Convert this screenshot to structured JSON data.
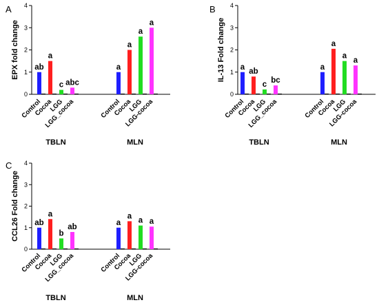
{
  "chart_data": [
    {
      "panel": "A",
      "type": "bar",
      "ylabel": "EPX fold change",
      "ylim": [
        0,
        4
      ],
      "yticks": [
        "0",
        "1",
        "2",
        "3",
        "4"
      ],
      "groups": [
        {
          "name": "TBLN",
          "bars": [
            {
              "label": "Control",
              "value": 1.0,
              "color": "#1f1fff",
              "sig": "ab"
            },
            {
              "label": "Cocoa",
              "value": 1.5,
              "color": "#ff1f1f",
              "sig": "a"
            },
            {
              "label": "LGG",
              "value": 0.2,
              "color": "#22dd22",
              "sig": "c"
            },
            {
              "label": "LGG_cocoa",
              "value": 0.3,
              "color": "#ff33ff",
              "sig": "abc"
            }
          ]
        },
        {
          "name": "MLN",
          "bars": [
            {
              "label": "Control",
              "value": 1.0,
              "color": "#1f1fff",
              "sig": "a"
            },
            {
              "label": "Cocoa",
              "value": 2.0,
              "color": "#ff1f1f",
              "sig": "a"
            },
            {
              "label": "LGG",
              "value": 2.6,
              "color": "#22dd22",
              "sig": "a"
            },
            {
              "label": "LGG-cocoa",
              "value": 3.0,
              "color": "#ff33ff",
              "sig": "a"
            }
          ]
        }
      ]
    },
    {
      "panel": "B",
      "type": "bar",
      "ylabel": "IL-13 Fold change",
      "ylim": [
        0,
        4
      ],
      "yticks": [
        "0",
        "1",
        "2",
        "3",
        "4"
      ],
      "groups": [
        {
          "name": "TBLN",
          "bars": [
            {
              "label": "Control",
              "value": 1.0,
              "color": "#1f1fff",
              "sig": "a"
            },
            {
              "label": "Cocoa",
              "value": 0.8,
              "color": "#ff1f1f",
              "sig": "ab"
            },
            {
              "label": "LGG",
              "value": 0.22,
              "color": "#22dd22",
              "sig": "c"
            },
            {
              "label": "LGG_cocoa",
              "value": 0.4,
              "color": "#ff33ff",
              "sig": "bc"
            }
          ]
        },
        {
          "name": "MLN",
          "bars": [
            {
              "label": "Control",
              "value": 1.0,
              "color": "#1f1fff",
              "sig": "a"
            },
            {
              "label": "Cocoa",
              "value": 2.05,
              "color": "#ff1f1f",
              "sig": "a"
            },
            {
              "label": "LGG",
              "value": 1.5,
              "color": "#22dd22",
              "sig": "a"
            },
            {
              "label": "LGG-cocoa",
              "value": 1.3,
              "color": "#ff33ff",
              "sig": "a"
            }
          ]
        }
      ]
    },
    {
      "panel": "C",
      "type": "bar",
      "ylabel": "CCL26 Fold change",
      "ylim": [
        0,
        4
      ],
      "yticks": [
        "0",
        "1",
        "2",
        "3",
        "4"
      ],
      "groups": [
        {
          "name": "TBLN",
          "bars": [
            {
              "label": "Control",
              "value": 1.0,
              "color": "#1f1fff",
              "sig": "ab"
            },
            {
              "label": "Cocoa",
              "value": 1.4,
              "color": "#ff1f1f",
              "sig": "a"
            },
            {
              "label": "LGG",
              "value": 0.5,
              "color": "#22dd22",
              "sig": "b"
            },
            {
              "label": "LGG_cocoa",
              "value": 0.8,
              "color": "#ff33ff",
              "sig": "ab"
            }
          ]
        },
        {
          "name": "MLN",
          "bars": [
            {
              "label": "Control",
              "value": 1.0,
              "color": "#1f1fff",
              "sig": "a"
            },
            {
              "label": "Cocoa",
              "value": 1.3,
              "color": "#ff1f1f",
              "sig": "a"
            },
            {
              "label": "LGG",
              "value": 1.1,
              "color": "#22dd22",
              "sig": "a"
            },
            {
              "label": "LGG-cocoa",
              "value": 1.05,
              "color": "#ff33ff",
              "sig": "a"
            }
          ]
        }
      ]
    }
  ]
}
